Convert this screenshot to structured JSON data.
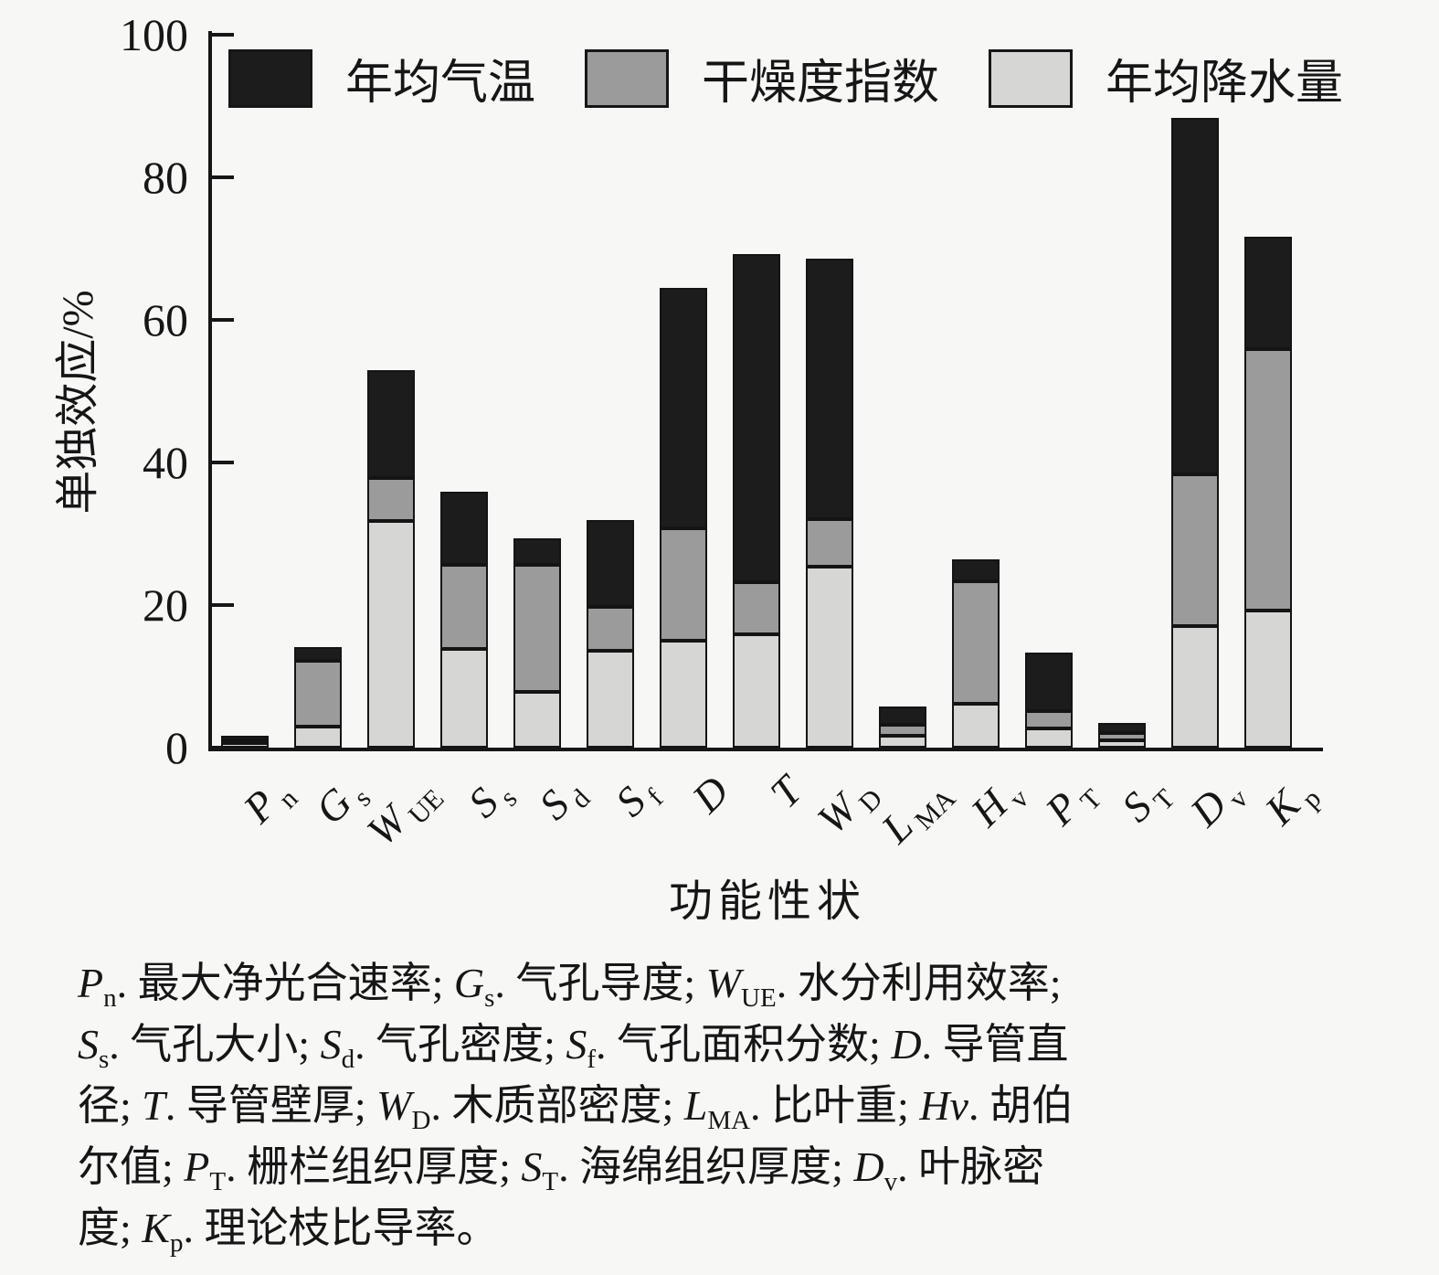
{
  "page": {
    "background": "#f7f7f6",
    "ink": "#161616"
  },
  "y_axis": {
    "label": "单独效应/%",
    "tick_values": [
      0,
      20,
      40,
      60,
      80,
      100
    ]
  },
  "x_axis": {
    "title": "功能性状"
  },
  "legend": [
    {
      "label": "年均气温",
      "color": "#1c1c1c"
    },
    {
      "label": "干燥度指数",
      "color": "#9b9b9b"
    },
    {
      "label": "年均降水量",
      "color": "#d6d6d5"
    }
  ],
  "chart_data": {
    "type": "bar",
    "stacked": true,
    "title": "",
    "xlabel": "功能性状",
    "ylabel": "单独效应/%",
    "ylim": [
      0,
      100
    ],
    "grid": false,
    "legend_position": "top-inside",
    "legend_order": [
      "年均气温",
      "干燥度指数",
      "年均降水量"
    ],
    "stack_order_note": "series listed bottom-to-top",
    "categories": [
      {
        "base": "P",
        "sub": "n"
      },
      {
        "base": "G",
        "sub": "s"
      },
      {
        "base": "W",
        "sub": "UE"
      },
      {
        "base": "S",
        "sub": "s"
      },
      {
        "base": "S",
        "sub": "d"
      },
      {
        "base": "S",
        "sub": "f"
      },
      {
        "base": "D",
        "sub": ""
      },
      {
        "base": "T",
        "sub": ""
      },
      {
        "base": "W",
        "sub": "D"
      },
      {
        "base": "L",
        "sub": "MA"
      },
      {
        "base": "H",
        "sub": "v"
      },
      {
        "base": "P",
        "sub": "T"
      },
      {
        "base": "S",
        "sub": "T"
      },
      {
        "base": "D",
        "sub": "v"
      },
      {
        "base": "K",
        "sub": "p"
      }
    ],
    "series": [
      {
        "name": "年均降水量",
        "color": "#d6d6d5",
        "values": [
          0.6,
          2.9,
          31.8,
          13.8,
          7.8,
          13.6,
          15.0,
          15.9,
          25.4,
          1.7,
          6.2,
          2.7,
          1.0,
          17.1,
          19.2
        ]
      },
      {
        "name": "干燥度指数",
        "color": "#9b9b9b",
        "values": [
          0.4,
          9.3,
          6.0,
          11.8,
          17.9,
          6.1,
          15.8,
          7.3,
          6.7,
          1.5,
          17.1,
          2.4,
          1.0,
          21.2,
          36.7
        ]
      },
      {
        "name": "年均气温",
        "color": "#1c1c1c",
        "values": [
          0.7,
          1.9,
          15.2,
          10.3,
          3.7,
          12.2,
          33.7,
          46.0,
          36.5,
          2.6,
          3.1,
          8.2,
          1.5,
          50.0,
          15.8
        ]
      }
    ],
    "totals": [
      1.7,
      14.1,
      53.0,
      35.9,
      29.4,
      31.9,
      64.5,
      69.2,
      68.6,
      5.8,
      26.4,
      13.3,
      3.5,
      88.3,
      71.7
    ]
  },
  "caption": {
    "lines": [
      [
        {
          "t": "P",
          "s": "i"
        },
        {
          "t": "n",
          "s": "sub"
        },
        {
          "t": ". 最大净光合速率; ",
          "s": "n"
        },
        {
          "t": "G",
          "s": "i"
        },
        {
          "t": "s",
          "s": "sub"
        },
        {
          "t": ". 气孔导度; ",
          "s": "n"
        },
        {
          "t": "W",
          "s": "i"
        },
        {
          "t": "UE",
          "s": "sub"
        },
        {
          "t": ". 水分利用效率;",
          "s": "n"
        }
      ],
      [
        {
          "t": "S",
          "s": "i"
        },
        {
          "t": "s",
          "s": "sub"
        },
        {
          "t": ". 气孔大小; ",
          "s": "n"
        },
        {
          "t": "S",
          "s": "i"
        },
        {
          "t": "d",
          "s": "sub"
        },
        {
          "t": ". 气孔密度; ",
          "s": "n"
        },
        {
          "t": "S",
          "s": "i"
        },
        {
          "t": "f",
          "s": "sub"
        },
        {
          "t": ". 气孔面积分数; ",
          "s": "n"
        },
        {
          "t": "D",
          "s": "i"
        },
        {
          "t": ". 导管直",
          "s": "n"
        }
      ],
      [
        {
          "t": "径; ",
          "s": "n"
        },
        {
          "t": "T",
          "s": "i"
        },
        {
          "t": ". 导管壁厚; ",
          "s": "n"
        },
        {
          "t": "W",
          "s": "i"
        },
        {
          "t": "D",
          "s": "sub"
        },
        {
          "t": ". 木质部密度; ",
          "s": "n"
        },
        {
          "t": "L",
          "s": "i"
        },
        {
          "t": "MA",
          "s": "sub"
        },
        {
          "t": ". 比叶重; ",
          "s": "n"
        },
        {
          "t": "Hv",
          "s": "i"
        },
        {
          "t": ". 胡伯",
          "s": "n"
        }
      ],
      [
        {
          "t": "尔值; ",
          "s": "n"
        },
        {
          "t": "P",
          "s": "i"
        },
        {
          "t": "T",
          "s": "sub"
        },
        {
          "t": ". 栅栏组织厚度; ",
          "s": "n"
        },
        {
          "t": "S",
          "s": "i"
        },
        {
          "t": "T",
          "s": "sub"
        },
        {
          "t": ". 海绵组织厚度; ",
          "s": "n"
        },
        {
          "t": "D",
          "s": "i"
        },
        {
          "t": "v",
          "s": "sub"
        },
        {
          "t": ". 叶脉密",
          "s": "n"
        }
      ],
      [
        {
          "t": "度; ",
          "s": "n"
        },
        {
          "t": "K",
          "s": "i"
        },
        {
          "t": "p",
          "s": "sub"
        },
        {
          "t": ". 理论枝比导率。",
          "s": "n"
        }
      ]
    ]
  }
}
